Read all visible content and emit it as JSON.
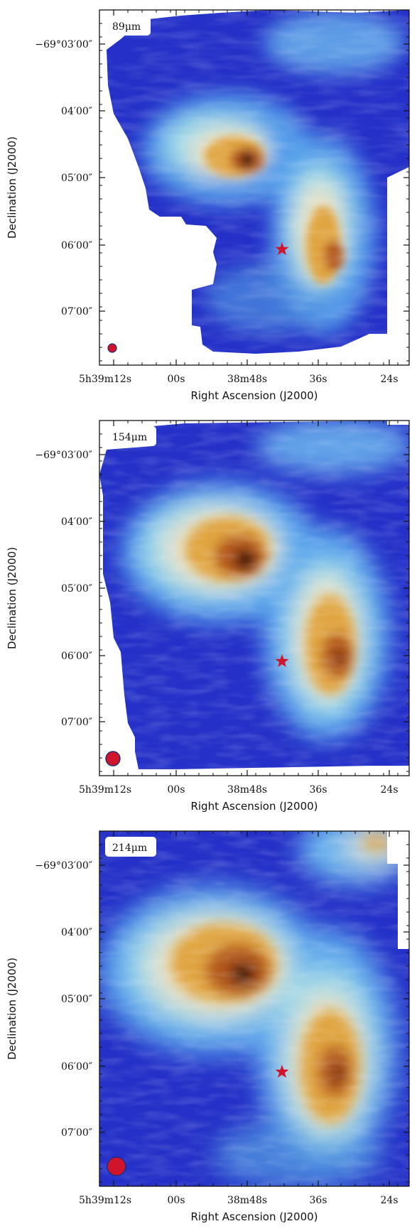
{
  "colors": {
    "low": "#2430c8",
    "mid_low": "#5aa6ec",
    "mid": "#9edbe8",
    "pale": "#e8e2c8",
    "mid_high": "#e0a440",
    "high": "#b4561c",
    "peak": "#3a1208",
    "marker": "#d0142c",
    "beam_edge": "#1d2a7a"
  },
  "icons": {
    "star": "red-star-marker",
    "beam": "beam-size-circle"
  },
  "chart_data": [
    {
      "type": "heatmap",
      "band_label": "89μm",
      "xlabel": "Right Ascension (J2000)",
      "ylabel": "Declination (J2000)",
      "x_ticks": [
        "5h39m12s",
        "00s",
        "38m48s",
        "36s",
        "24s"
      ],
      "y_ticks": [
        "−69°03′00″",
        "04′00″",
        "05′00″",
        "06′00″",
        "07′00″"
      ],
      "peaks": [
        {
          "label": "north-west clump",
          "intensity": 1.0
        },
        {
          "label": "south-east clump",
          "intensity": 0.85
        }
      ],
      "beam_relative_size": 0.35
    },
    {
      "type": "heatmap",
      "band_label": "154μm",
      "xlabel": "Right Ascension (J2000)",
      "ylabel": "Declination (J2000)",
      "x_ticks": [
        "5h39m12s",
        "00s",
        "38m48s",
        "36s",
        "24s"
      ],
      "y_ticks": [
        "−69°03′00″",
        "04′00″",
        "05′00″",
        "06′00″",
        "07′00″"
      ],
      "peaks": [
        {
          "label": "north-west clump",
          "intensity": 1.0
        },
        {
          "label": "south-east clump",
          "intensity": 0.9
        }
      ],
      "beam_relative_size": 0.62
    },
    {
      "type": "heatmap",
      "band_label": "214μm",
      "xlabel": "Right Ascension (J2000)",
      "ylabel": "Declination (J2000)",
      "x_ticks": [
        "5h39m12s",
        "00s",
        "38m48s",
        "36s",
        "24s"
      ],
      "y_ticks": [
        "−69°03′00″",
        "04′00″",
        "05′00″",
        "06′00″",
        "07′00″"
      ],
      "peaks": [
        {
          "label": "north-west clump",
          "intensity": 1.0
        },
        {
          "label": "south-east clump",
          "intensity": 0.9
        }
      ],
      "beam_relative_size": 0.85
    }
  ]
}
